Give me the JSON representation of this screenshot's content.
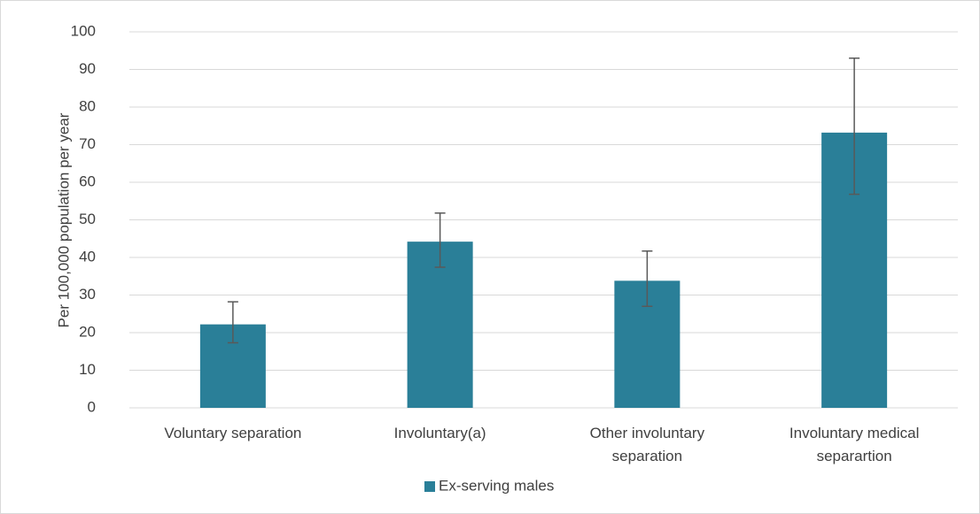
{
  "chart_data": {
    "type": "bar",
    "y_label": "Per 100,000 population per year",
    "categories": [
      "Voluntary separation",
      "Involuntary(a)",
      "Other involuntary separation",
      "Involuntary medical separartion"
    ],
    "series": [
      {
        "name": "Ex-serving males",
        "color": "#2a7f98",
        "values": [
          22.2,
          44.2,
          33.8,
          73.2
        ],
        "error_low": [
          17.3,
          37.4,
          27.0,
          56.8
        ],
        "error_high": [
          28.2,
          51.8,
          41.7,
          93.0
        ]
      }
    ],
    "ylim": [
      0,
      100
    ],
    "yticks": [
      0,
      10,
      20,
      30,
      40,
      50,
      60,
      70,
      80,
      90,
      100
    ],
    "grid": true,
    "legend": "bottom"
  }
}
